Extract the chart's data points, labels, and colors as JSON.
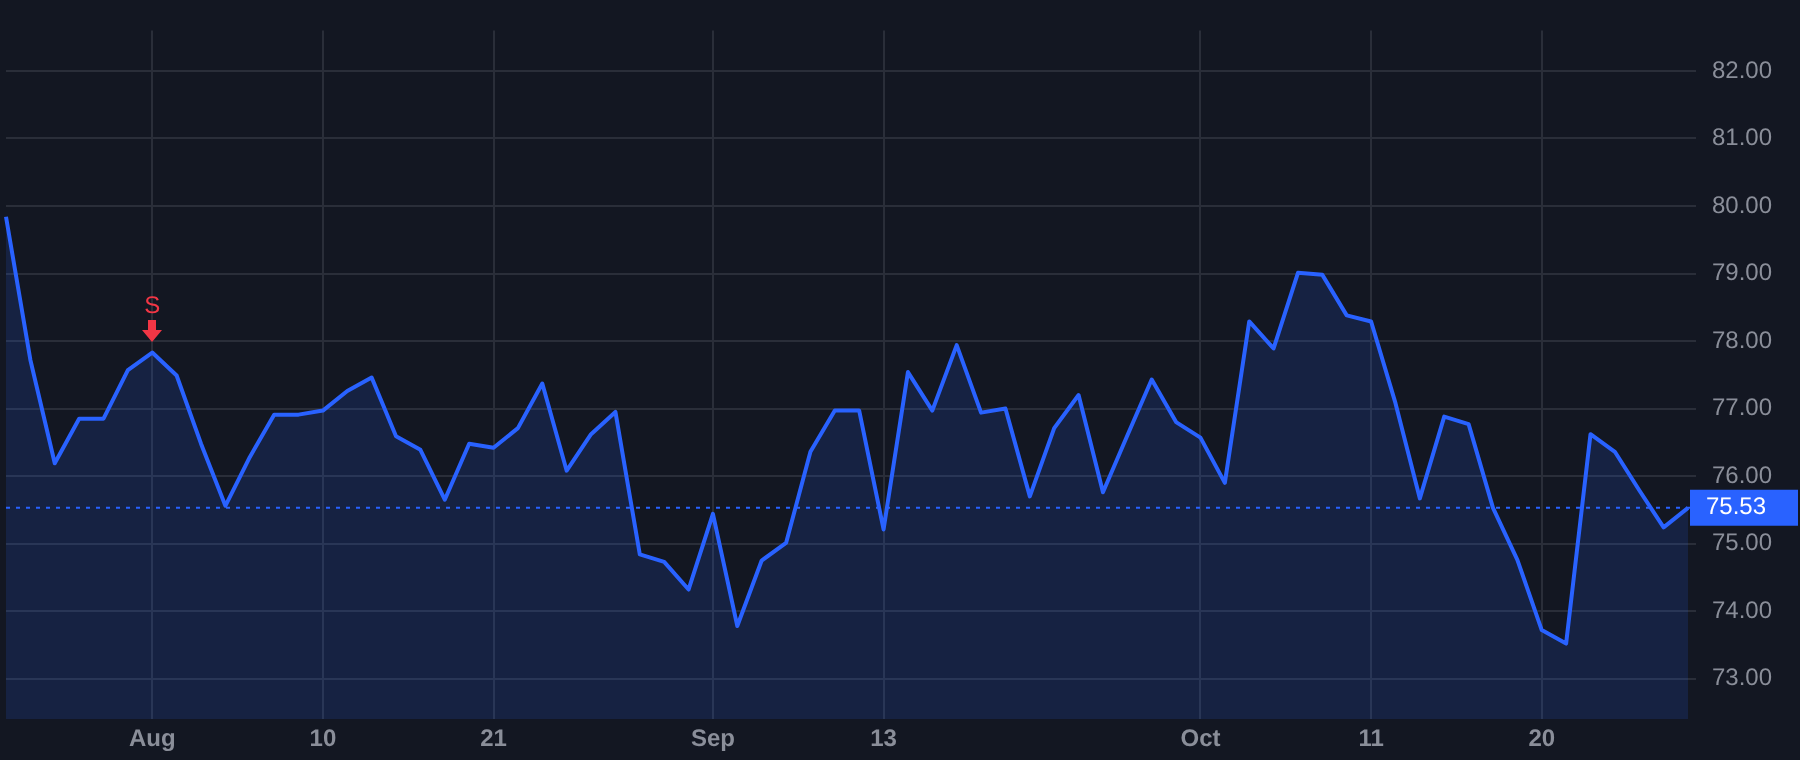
{
  "chart_data": {
    "type": "area",
    "categories": [
      null,
      null,
      null,
      null,
      null,
      null,
      "Aug",
      null,
      null,
      null,
      null,
      null,
      null,
      "10",
      null,
      null,
      null,
      null,
      null,
      null,
      "21",
      null,
      null,
      null,
      null,
      null,
      null,
      null,
      null,
      "Sep",
      null,
      null,
      null,
      null,
      null,
      null,
      "13",
      null,
      null,
      null,
      null,
      null,
      null,
      null,
      null,
      null,
      null,
      null,
      null,
      "Oct",
      null,
      null,
      null,
      null,
      null,
      null,
      "11",
      null,
      null,
      null,
      null,
      null,
      null,
      "20",
      null,
      null,
      null,
      null,
      null,
      null
    ],
    "series": [
      {
        "color": "#2962ff",
        "values": [
          79.84,
          77.72,
          76.19,
          76.85,
          76.85,
          77.57,
          77.83,
          77.49,
          76.48,
          75.56,
          76.28,
          76.91,
          76.91,
          76.97,
          77.26,
          77.46,
          76.59,
          76.39,
          75.65,
          76.48,
          76.42,
          76.71,
          77.37,
          76.08,
          76.62,
          76.95,
          74.84,
          74.73,
          74.32,
          75.44,
          73.78,
          74.75,
          75.01,
          76.36,
          76.97,
          76.97,
          75.21,
          77.54,
          76.97,
          77.94,
          76.94,
          77.0,
          75.7,
          76.71,
          77.2,
          75.76,
          76.6,
          77.43,
          76.8,
          76.57,
          75.9,
          78.29,
          77.89,
          79.01,
          78.98,
          78.38,
          78.29,
          77.08,
          75.67,
          76.88,
          76.77,
          75.53,
          74.76,
          73.72,
          73.52,
          76.62,
          76.36,
          75.79,
          75.24,
          75.53
        ]
      }
    ],
    "ylim": [
      72.4,
      82.6
    ],
    "yticks": [
      {
        "value": 73,
        "label": "73.00"
      },
      {
        "value": 74,
        "label": "74.00"
      },
      {
        "value": 75,
        "label": "75.00"
      },
      {
        "value": 76,
        "label": "76.00"
      },
      {
        "value": 77,
        "label": "77.00"
      },
      {
        "value": 78,
        "label": "78.00"
      },
      {
        "value": 79,
        "label": "79.00"
      },
      {
        "value": 80,
        "label": "80.00"
      },
      {
        "value": 81,
        "label": "81.00"
      },
      {
        "value": 82,
        "label": "82.00"
      }
    ],
    "ref_lines": [
      {
        "axis": "y",
        "value": 75.53,
        "label": "75.53",
        "color": "#2962ff",
        "line_style": "dotted"
      }
    ],
    "annotations": [
      {
        "text": "S",
        "x": "Aug",
        "y": 77.83
      }
    ],
    "grid": true,
    "legend": false,
    "marker": "none",
    "line_style": "solid"
  }
}
